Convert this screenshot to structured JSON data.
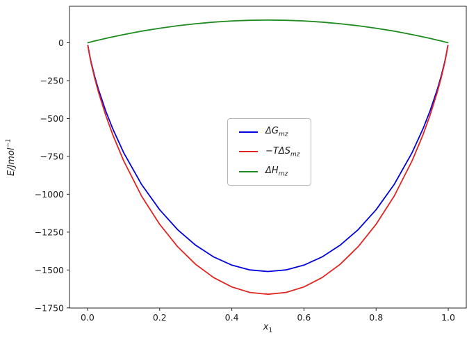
{
  "figure": {
    "ylabel_main": "E/Jmol",
    "ylabel_sup": "−1",
    "xlabel_main": "x",
    "xlabel_sub": "1"
  },
  "chart_data": {
    "type": "line",
    "title": "",
    "xlabel": "x₁",
    "ylabel": "E/Jmol⁻¹",
    "xlim": [
      -0.05,
      1.05
    ],
    "ylim": [
      -1751,
      241
    ],
    "grid": false,
    "legend_position": "center",
    "xticks": [
      {
        "v": 0.0,
        "label": "0.0"
      },
      {
        "v": 0.2,
        "label": "0.2"
      },
      {
        "v": 0.4,
        "label": "0.4"
      },
      {
        "v": 0.6,
        "label": "0.6"
      },
      {
        "v": 0.8,
        "label": "0.8"
      },
      {
        "v": 1.0,
        "label": "1.0"
      }
    ],
    "yticks": [
      {
        "v": 0,
        "label": "0"
      },
      {
        "v": -250,
        "label": "−250"
      },
      {
        "v": -500,
        "label": "−500"
      },
      {
        "v": -750,
        "label": "−750"
      },
      {
        "v": -1000,
        "label": "−1000"
      },
      {
        "v": -1250,
        "label": "−1250"
      },
      {
        "v": -1500,
        "label": "−1500"
      },
      {
        "v": -1750,
        "label": "−1750"
      }
    ],
    "x": [
      0.001,
      0.005,
      0.01,
      0.02,
      0.03,
      0.05,
      0.07,
      0.1,
      0.15,
      0.2,
      0.25,
      0.3,
      0.35,
      0.4,
      0.45,
      0.5,
      0.55,
      0.6,
      0.65,
      0.7,
      0.75,
      0.8,
      0.85,
      0.9,
      0.93,
      0.95,
      0.97,
      0.98,
      0.99,
      0.995,
      0.999
    ],
    "series": [
      {
        "name": "dG_mz",
        "label_main": "ΔG",
        "label_sub": "mz",
        "color": "#0000dd",
        "values": [
          -18.3,
          -72.4,
          -128.2,
          -223.0,
          -305.2,
          -446.9,
          -568.4,
          -724.6,
          -935.9,
          -1102.5,
          -1234.3,
          -1337.0,
          -1414.1,
          -1467.9,
          -1499.6,
          -1510.1,
          -1499.6,
          -1467.9,
          -1414.1,
          -1337.0,
          -1234.3,
          -1102.5,
          -935.9,
          -724.6,
          -568.4,
          -446.9,
          -305.2,
          -223.0,
          -128.2,
          -72.4,
          -18.3
        ]
      },
      {
        "name": "minusTdS_mz",
        "label_main": "−TΔS",
        "label_sub": "mz",
        "color": "#e02420",
        "values": [
          -18.9,
          -75.4,
          -134.1,
          -234.8,
          -322.7,
          -475.4,
          -607.5,
          -778.6,
          -1012.4,
          -1198.5,
          -1346.8,
          -1463.0,
          -1550.6,
          -1611.9,
          -1648.1,
          -1660.1,
          -1648.1,
          -1611.9,
          -1550.6,
          -1463.0,
          -1346.8,
          -1198.5,
          -1012.4,
          -778.6,
          -607.5,
          -475.4,
          -322.7,
          -234.8,
          -134.1,
          -75.4,
          -18.9
        ]
      },
      {
        "name": "dH_mz",
        "label_main": "ΔH",
        "label_sub": "mz",
        "color": "#1e8b1e",
        "values": [
          0.6,
          3.0,
          5.9,
          11.8,
          17.5,
          28.5,
          39.1,
          54.0,
          76.5,
          96.0,
          112.5,
          126.0,
          136.5,
          144.0,
          148.5,
          150.0,
          148.5,
          144.0,
          136.5,
          126.0,
          112.5,
          96.0,
          76.5,
          54.0,
          39.1,
          28.5,
          17.5,
          11.8,
          5.9,
          3.0,
          0.6
        ]
      }
    ]
  }
}
